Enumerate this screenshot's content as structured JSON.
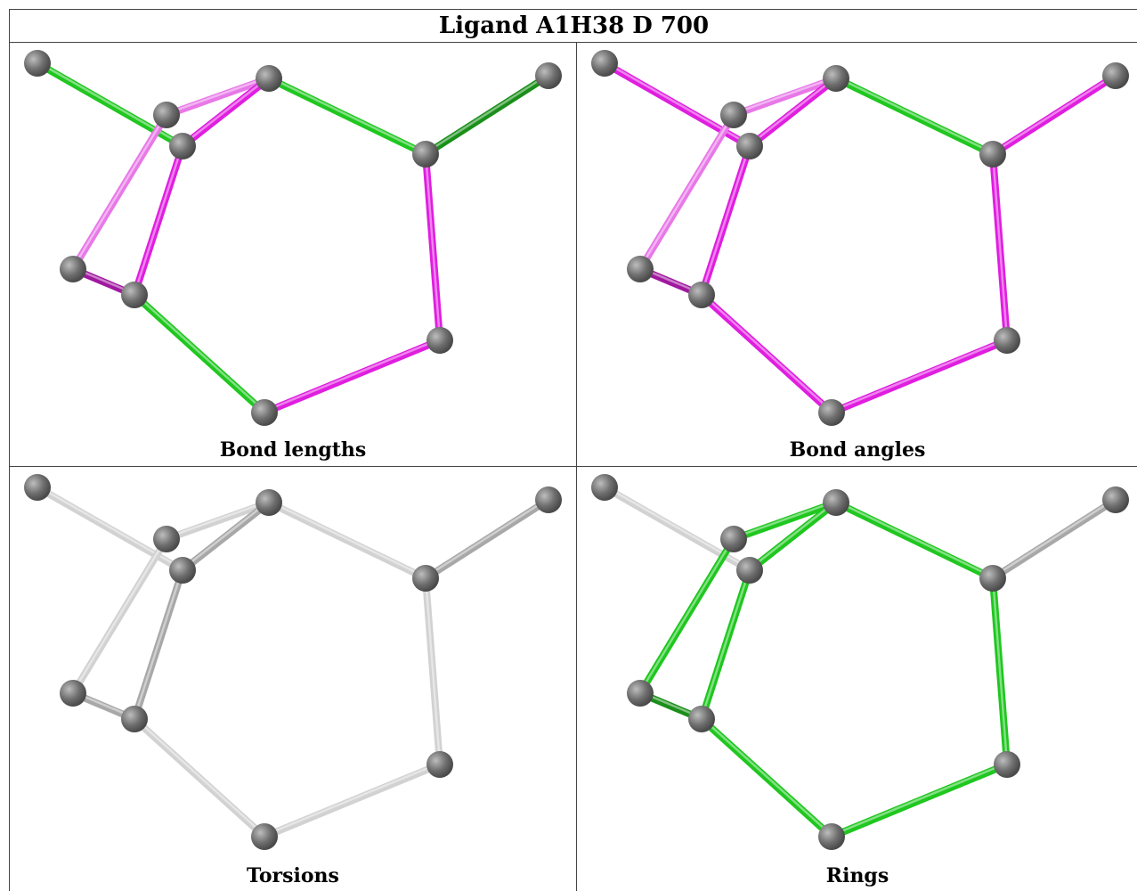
{
  "title": "Ligand A1H38 D 700",
  "panels": [
    {
      "caption": "Bond lengths"
    },
    {
      "caption": "Bond angles"
    },
    {
      "caption": "Torsions"
    },
    {
      "caption": "Rings"
    }
  ],
  "colors": {
    "green": "#1fc71f",
    "dark_green": "#1a8f1a",
    "magenta": "#e01ee0",
    "dark_magenta": "#a0189f",
    "light_magenta": "#e878e8",
    "light_gray": "#d2d2d2",
    "gray": "#a8a8a8",
    "atom": "#6e6e6e"
  },
  "bond_colors": {
    "bond_lengths": [
      "green",
      "magenta",
      "light_magenta",
      "light_magenta",
      "magenta",
      "magenta",
      "dark_magenta",
      "green",
      "magenta",
      "magenta",
      "green",
      "dark_green"
    ],
    "bond_angles": [
      "magenta",
      "magenta",
      "light_magenta",
      "light_magenta",
      "magenta",
      "magenta",
      "dark_magenta",
      "magenta",
      "magenta",
      "magenta",
      "green",
      "magenta"
    ],
    "torsions": [
      "light_gray",
      "gray",
      "light_gray",
      "light_gray",
      "gray",
      "gray",
      "gray",
      "light_gray",
      "light_gray",
      "light_gray",
      "light_gray",
      "gray"
    ],
    "rings": [
      "light_gray",
      "dark_green",
      "green",
      "green",
      "green",
      "green",
      "dark_green",
      "green",
      "green",
      "green",
      "green",
      "gray"
    ]
  }
}
